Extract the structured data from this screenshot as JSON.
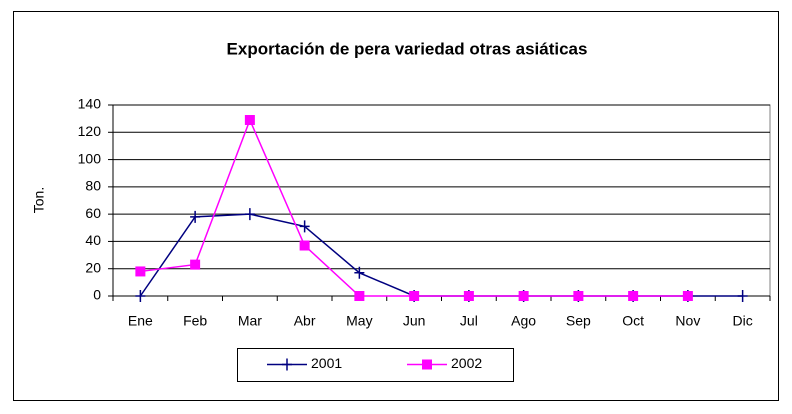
{
  "chart_data": {
    "type": "line",
    "title": "Exportación de pera variedad otras asiáticas",
    "y_label": "Ton.",
    "categories": [
      "Ene",
      "Feb",
      "Mar",
      "Abr",
      "May",
      "Jun",
      "Jul",
      "Ago",
      "Sep",
      "Oct",
      "Nov",
      "Dic"
    ],
    "series": [
      {
        "name": "2001",
        "color": "#000080",
        "marker": "plus",
        "values": [
          0,
          58,
          60,
          51,
          17,
          0,
          0,
          0,
          0,
          0,
          0,
          0
        ]
      },
      {
        "name": "2002",
        "color": "#ff00ff",
        "marker": "square",
        "values": [
          18,
          23,
          129,
          37,
          0,
          0,
          0,
          0,
          0,
          0,
          0,
          null
        ]
      }
    ],
    "ylim": [
      0,
      140
    ],
    "yticks": [
      0,
      20,
      40,
      60,
      80,
      100,
      120,
      140
    ],
    "grid": true,
    "legend": "bottom"
  }
}
